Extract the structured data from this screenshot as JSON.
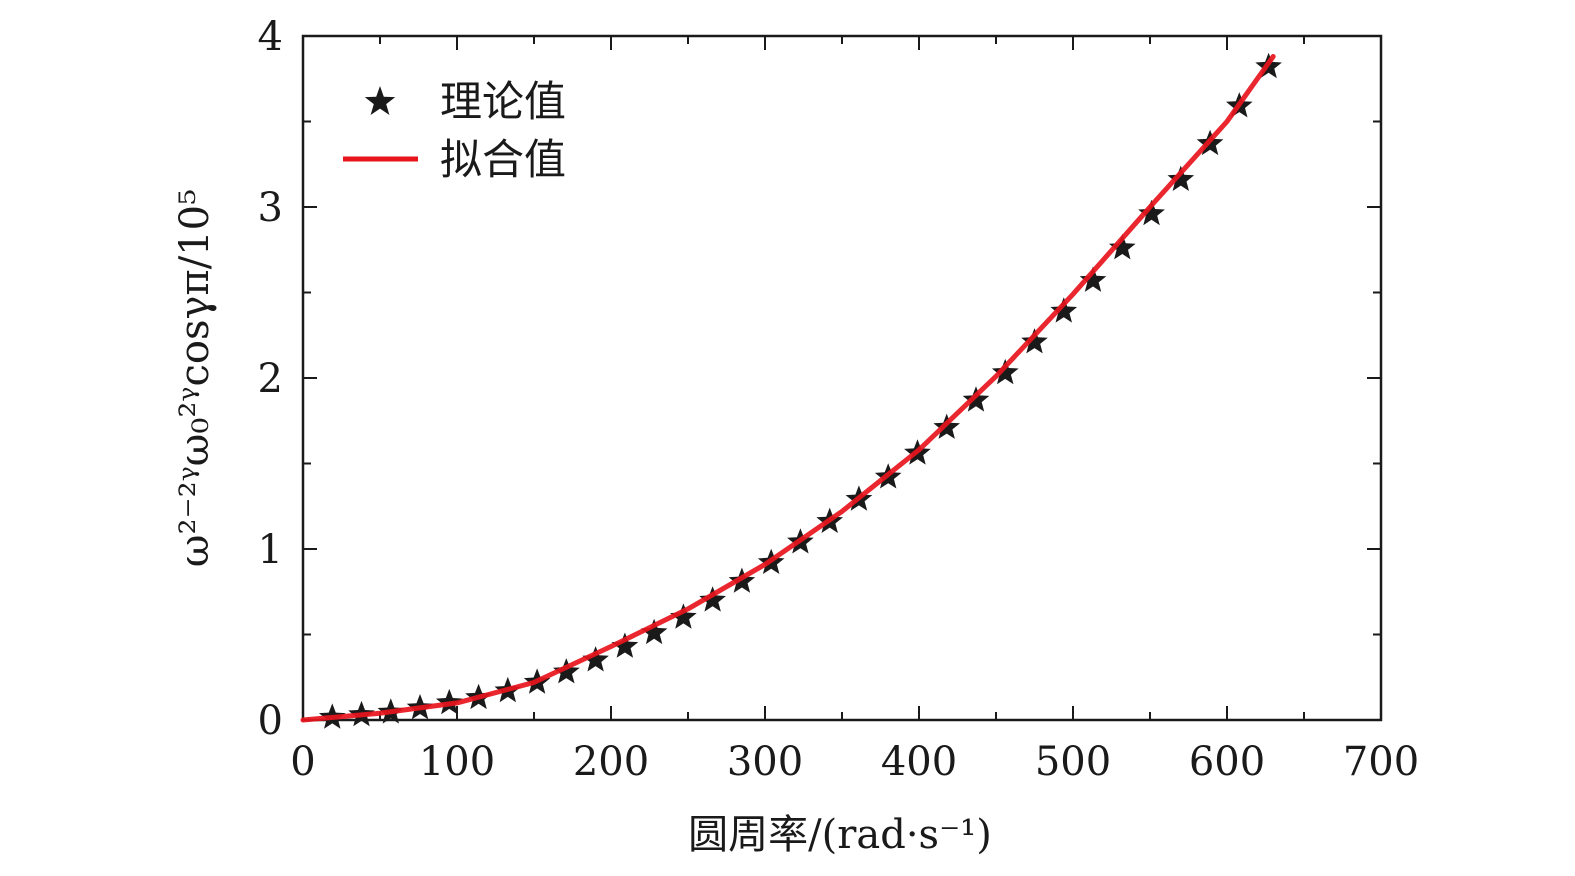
{
  "chart_data": {
    "type": "scatter",
    "xlabel": "圆周率/(rad·s⁻¹)",
    "ylabel": "ω²⁻²ᵞω₀²ᵞcosγπ/10⁵",
    "xlim": [
      0,
      700
    ],
    "ylim": [
      0,
      4
    ],
    "x_ticks": [
      0,
      100,
      200,
      300,
      400,
      500,
      600,
      700
    ],
    "y_ticks": [
      0,
      1,
      2,
      3,
      4
    ],
    "x_tick_labels": [
      "0",
      "100",
      "200",
      "300",
      "400",
      "500",
      "600",
      "700"
    ],
    "y_tick_labels": [
      "0",
      "1",
      "2",
      "3",
      "4"
    ],
    "legend_position": "top-left",
    "grid": false,
    "series": [
      {
        "name": "理论值",
        "kind": "scatter",
        "marker": "star",
        "color": "#1a1a1a",
        "x": [
          19,
          38,
          57,
          76,
          95,
          114,
          133,
          152,
          171,
          190,
          209,
          228,
          247,
          266,
          285,
          304,
          323,
          342,
          361,
          380,
          399,
          418,
          437,
          456,
          475,
          494,
          513,
          532,
          551,
          570,
          589,
          608,
          627
        ],
        "y": [
          0.015,
          0.03,
          0.045,
          0.07,
          0.1,
          0.13,
          0.17,
          0.22,
          0.28,
          0.35,
          0.43,
          0.51,
          0.6,
          0.7,
          0.81,
          0.92,
          1.04,
          1.16,
          1.29,
          1.42,
          1.56,
          1.71,
          1.87,
          2.03,
          2.21,
          2.39,
          2.57,
          2.76,
          2.96,
          3.16,
          3.37,
          3.59,
          3.82
        ]
      },
      {
        "name": "拟合值",
        "kind": "line",
        "color": "#e8141c",
        "x": [
          0,
          50,
          100,
          150,
          200,
          250,
          300,
          350,
          400,
          450,
          500,
          550,
          600,
          630
        ],
        "y": [
          0.0,
          0.04,
          0.1,
          0.22,
          0.43,
          0.65,
          0.91,
          1.22,
          1.58,
          2.01,
          2.49,
          3.0,
          3.5,
          3.88
        ]
      }
    ]
  }
}
